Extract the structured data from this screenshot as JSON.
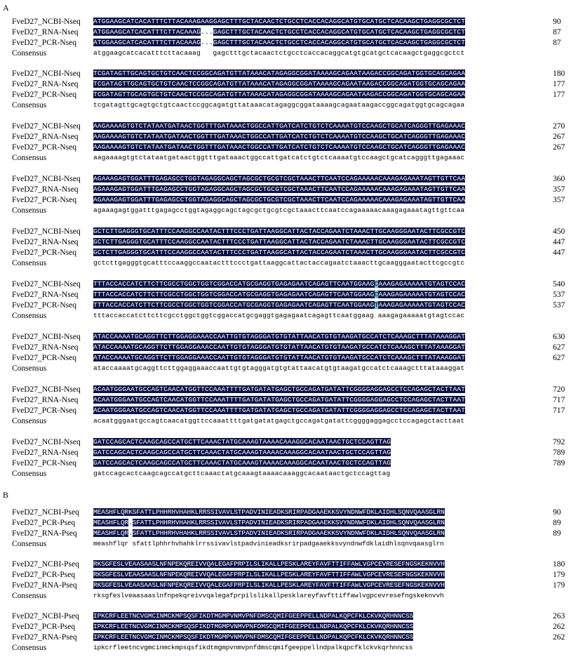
{
  "panel_a": {
    "label": "A",
    "blocks": [
      {
        "rows": [
          {
            "name": "FveD27_NCBI-Nseq",
            "seq": "ATGGAAGCATCACATTTCTTACAAAGAAGGAGCTTTGCTACAACTCTGCCTCACCACAGGCATGTGCATGCTCACAAGCTGAGGCGCTCT",
            "num": "90"
          },
          {
            "name": "FveD27_RNA-Nseq",
            "seq": "ATGGAAGCATCACATTTCTTACAAAG...GAGCTTTGCTACAACTCTGCCTCACCACAGGCATGTGCATGCTCACAAGCTGAGGCGCTCT",
            "num": "87"
          },
          {
            "name": "FveD27_PCR-Nseq",
            "seq": "ATGGAAGCATCACATTTCTTACAAAG...GAGCTTTGCTACAACTCTGCCTCACCACAGGCATGTGCATGCTCACAAGCTGAGGCGCTCT",
            "num": "87"
          }
        ],
        "consensus": "atggaagcatcacatttcttacaaag   gagctttgctacaactctgcctcaccacaggcatgtgcatgctcacaagctgaggcgctct"
      },
      {
        "rows": [
          {
            "name": "FveD27_NCBI-Nseq",
            "seq": "TCGATAGTTGCAGTGCTGTCAACTCCGGCAGATGTTATAAACATAGAGGCGGATAAAAGCAGAATAAGACCGGCAGATGGTGCAGCAGAA",
            "num": "180"
          },
          {
            "name": "FveD27_RNA-Nseq",
            "seq": "TCGATAGTTGCAGTGCTGTCAACTCCGGCAGATGTTATAAACATAGAGGCGGATAAAAGCAGAATAAGACCGGCAGATGGTGCAGCAGAA",
            "num": "177"
          },
          {
            "name": "FveD27_PCR-Nseq",
            "seq": "TCGATAGTTGCAGTGCTGTCAACTCCGGCAGATGTTATAAACATAGAGGCGGATAAAAGCAGAATAAGACCGGCAGATGGTGCAGCAGAA",
            "num": "177"
          }
        ],
        "consensus": "tcgatagttgcagtgctgtcaactccggcagatgttataaacatagaggcggataaaagcagaataagaccggcagatggtgcagcagaa"
      },
      {
        "rows": [
          {
            "name": "FveD27_NCBI-Nseq",
            "seq": "AAGAAAAGTGTCTATAATGATAACTGGTTTGATAAACTGGCCATTGATCATCTGTCTCAAAATGTCCAAGCTGCATCAGGGTTGAGAAAC",
            "num": "270"
          },
          {
            "name": "FveD27_RNA-Nseq",
            "seq": "AAGAAAAGTGTCTATAATGATAACTGGTTTGATAAACTGGCCATTGATCATCTGTCTCAAAATGTCCAAGCTGCATCAGGGTTGAGAAAC",
            "num": "267"
          },
          {
            "name": "FveD27_PCR-Nseq",
            "seq": "AAGAAAAGTGTCTATAATGATAACTGGTTTGATAAACTGGCCATTGATCATCTGTCTCAAAATGTCCAAGCTGCATCAGGGTTGAGAAAC",
            "num": "267"
          }
        ],
        "consensus": "aagaaaagtgtctataatgataactggtttgataaactggccattgatcatctgtctcaaaatgtccaagctgcatcagggttgagaaac"
      },
      {
        "rows": [
          {
            "name": "FveD27_NCBI-Nseq",
            "seq": "AGAAAGAGTGGATTTGAGAGCCTGGTAGAGGCAGCTAGCGCTGCGTCGCTAAACTTCAATCCAGAAAAACAAAGAGAAATAGTTGTTCAA",
            "num": "360"
          },
          {
            "name": "FveD27_RNA-Nseq",
            "seq": "AGAAAGAGTGGATTTGAGAGCCTGGTAGAGGCAGCTAGCGCTGCGTCGCTAAACTTCAATCCAGAAAAACAAAGAGAAATAGTTGTTCAA",
            "num": "357"
          },
          {
            "name": "FveD27_PCR-Nseq",
            "seq": "AGAAAGAGTGGATTTGAGAGCCTGGTAGAGGCAGCTAGCGCTGCGTCGCTAAACTTCAATCCAGAAAAACAAAGAGAAATAGTTGTTCAA",
            "num": "357"
          }
        ],
        "consensus": "agaaagagtggatttgagagcctggtagaggcagctagcgctgcgtcgctaaacttcaatccagaaaaacaaagagaaatagttgttcaa"
      },
      {
        "rows": [
          {
            "name": "FveD27_NCBI-Nseq",
            "seq": "GCTCTTGAGGGTGCATTTCCAAGGCCAATACTTTCCCTGATTAAGGCATTACTACCAGAATCTAAACTTGCAAGGGAATACTTCGCCGTC",
            "num": "450"
          },
          {
            "name": "FveD27_RNA-Nseq",
            "seq": "GCTCTTGAGGGTGCATTTCCAAGGCCAATACTTTCCCTGATTAAGGCATTACTACCAGAATCTAAACTTGCAAGGGAATACTTCGCCGTC",
            "num": "447"
          },
          {
            "name": "FveD27_PCR-Nseq",
            "seq": "GCTCTTGAGGGTGCATTTCCAAGGCCAATACTTTCCCTGATTAAGGCATTACTACCAGAATCTAAACTTGCAAGGGAATACTTCGCCGTC",
            "num": "447"
          }
        ],
        "consensus": "gctcttgagggtgcatttccaaggccaatactttccctgattaaggcattactaccagaatctaaacttgcaagggaatacttcgccgtc"
      },
      {
        "rows": [
          {
            "name": "FveD27_NCBI-Nseq",
            "seq": "TTTACCACCATCTTCTTCGCCTGGCTGGTCGGACCATGCGAGGTGAGAGAATCAGAGTTCAATGGAAGCAAAGAGAAAAATGTAGTCCAC",
            "num": "540"
          },
          {
            "name": "FveD27_RNA-Nseq",
            "seq": "TTTACCACCATCTTCTTCGCCTGGCTGGTCGGACCATGCGAGGTGAGAGAATCAGAGTTCAATGGAAGCAAAGAGAAAAATGTAGTCCAC",
            "num": "537"
          },
          {
            "name": "FveD27_PCR-Nseq",
            "seq": "TTTACCACCATCTTCTTCGCCTGGCTGGTCGGACCATGCGAGGTGAGAGAATCAGAGTTCAATGGAAGTAAAGAGAAAAATGTAGTCCAC",
            "num": "537"
          }
        ],
        "consensus": "tttaccaccatcttcttcgcctggctggtcggaccatgcgaggtgagagaatcagagttcaatggaag aaagagaaaaatgtagtccac"
      },
      {
        "rows": [
          {
            "name": "FveD27_NCBI-Nseq",
            "seq": "ATACCAAAATGCAGGTTCTTGGAGGAAACCAATTGTGTAGGGATGTGTATTAACATGTGTAAGATGCCATCTCAAAGCTTTATAAAGGAT",
            "num": "630"
          },
          {
            "name": "FveD27_RNA-Nseq",
            "seq": "ATACCAAAATGCAGGTTCTTGGAGGAAACCAATTGTGTAGGGATGTGTATTAACATGTGTAAGATGCCATCTCAAAGCTTTATAAAGGAT",
            "num": "627"
          },
          {
            "name": "FveD27_PCR-Nseq",
            "seq": "ATACCAAAATGCAGGTTCTTGGAGGAAACCAATTGTGTAGGGATGTGTATTAACATGTGTAAGATGCCATCTCAAAGCTTTATAAAGGAT",
            "num": "627"
          }
        ],
        "consensus": "ataccaaaatgcaggttcttggaggaaaccaattgtgtagggatgtgtattaacatgtgtaagatgccatctcaaagctttataaaggat"
      },
      {
        "rows": [
          {
            "name": "FveD27_NCBI-Nseq",
            "seq": "ACAATGGGAATGCCAGTCAACATGGTTCCAAATTTTGATGATATGAGCTGCCAGATGATATTCGGGGAGGAGCCTCCAGAGCTACTTAAT",
            "num": "720"
          },
          {
            "name": "FveD27_RNA-Nseq",
            "seq": "ACAATGGGAATGCCAGTCAACATGGTTCCAAATTTTGATGATATGAGCTGCCAGATGATATTCGGGGAGGAGCCTCCAGAGCTACTTAAT",
            "num": "717"
          },
          {
            "name": "FveD27_PCR-Nseq",
            "seq": "ACAATGGGAATGCCAGTCAACATGGTTCCAAATTTTGATGATATGAGCTGCCAGATGATATTCGGGGAGGAGCCTCCAGAGCTACTTAAT",
            "num": "717"
          }
        ],
        "consensus": "acaatgggaatgccagtcaacatggttccaaattttgatgatatgagctgccagatgatattcggggaggagcctccagagctacttaat"
      },
      {
        "rows": [
          {
            "name": "FveD27_NCBI-Nseq",
            "seq": "GATCCAGCACTCAAGCAGCCATGCTTCAAACTATGCAAAGTAAAACAAAGGCACAATAACTGCTCCAGTTAG",
            "num": "792"
          },
          {
            "name": "FveD27_RNA-Nseq",
            "seq": "GATCCAGCACTCAAGCAGCCATGCTTCAAACTATGCAAAGTAAAACAAAGGCACAATAACTGCTCCAGTTAG",
            "num": "789"
          },
          {
            "name": "FveD27_PCR-Nseq",
            "seq": "GATCCAGCACTCAAGCAGCCATGCTTCAAACTATGCAAAGTAAAACAAAGGCACAATAACTGCTCCAGTTAG",
            "num": "789"
          }
        ],
        "consensus": "gatccagcactcaagcagccatgcttcaaactatgcaaagtaaaacaaaggcacaataactgctccagttag"
      }
    ]
  },
  "panel_b": {
    "label": "B",
    "blocks": [
      {
        "rows": [
          {
            "name": "FveD27_NCBI-Pseq",
            "seq": "MEASHFLQRKSFATTLPHHRHVHAHKLRRSSIVAVLSTPADVINIEADKSRIRPADGAAEKKSVYNDNWFDKLAIDHLSQNVQAASGLRN",
            "num": "90"
          },
          {
            "name": "FveD27_PCR-Pseq",
            "seq": "MEASHFLQR.SFATTLPHHRHVHAHKLRRSSIVAVLSTPADVINIEADKSRIRPADGAAEKKSVYNDNWFDKLAIDHLSQNVQAASGLRN",
            "num": "89"
          },
          {
            "name": "FveD27_RNA-Pseq",
            "seq": "MEASHFLQR.SFATTLPHHRHVHAHKLRRSSIVAVLSTPADVINIEADKSRIRPADGAAEKKSVYNDNWFDKLAIDHLSQNVQAASGLRN",
            "num": "89"
          }
        ],
        "consensus": "meashflqr sfattlphhrhvhahklrrssivavlstpadvinieadksrirpadgaaekksvyndnwfdklaidhlsqnvqaasglrn"
      },
      {
        "rows": [
          {
            "name": "FveD27_NCBI-Pseq",
            "seq": "RKSGFESLVEAASAASLNFNPEKQREIVVQALEGAFPRPILSLIKALLPESKLAREYFAVFTTIFFAWLVGPCEVRESEFNGSKEKNVVH",
            "num": "180"
          },
          {
            "name": "FveD27_PCR-Pseq",
            "seq": "RKSGFESLVEAASAASLNFNPEKQREIVVQALEGAFPRPILSLIKALLPESKLAREYFAVFTTIFFAWLVGPCEVRESEFNGSKEKNVVH",
            "num": "179"
          },
          {
            "name": "FveD27_RNA-Pseq",
            "seq": "RKSGFESLVEAASAASLNFNPEKQREIVVQALEGAFPRPILSLIKALLPESKLAREYFAVFTTIFFAWLVGPCEVRESEFNGSKEKNVVH",
            "num": "179"
          }
        ],
        "consensus": "rksgfeslveaasaaslnfnpekqreivvqalegafprpilslikallpesklareyfavfttiffawlvgpcevresefngskeknvvh"
      },
      {
        "rows": [
          {
            "name": "FveD27_NCBI-Pseq",
            "seq": "IPKCRFLEETNCVGMCINMCKMPSQSFIKDTMGMPVNMVPNFDMSCQMIFGEEPPELLNDPALKQPCFKLCKVKQRHNNCSS",
            "num": "263"
          },
          {
            "name": "FveD27_PCR-Pseq",
            "seq": "IPKCRFLEETNCVGMCINMCKMPSQSFIKDTMGMPVNMVPNFDMSCQMIFGEEPPELLNDPALKQPCFKLCKVKQRHNNCSS",
            "num": "262"
          },
          {
            "name": "FveD27_RNA-Pseq",
            "seq": "IPKCRFLEETNCVGMCINMCKMPSQSFIKDTMGMPVNMVPNFDMSCQMIFGEEPPELLNDPALKQPCFKLCKVKQRHNNCSS",
            "num": "262"
          }
        ],
        "consensus": "ipkcrfleetncvgmcinmckmpsqsfikdtmgmpvnmvpnfdmscqmifgeeppellndpalkqpcfklckvkqrhnncss"
      }
    ]
  },
  "consensus_label": "Consensus",
  "colors": {
    "identical": "#0a1246",
    "variant": "#78b7c3",
    "gap": "#ffffff"
  }
}
